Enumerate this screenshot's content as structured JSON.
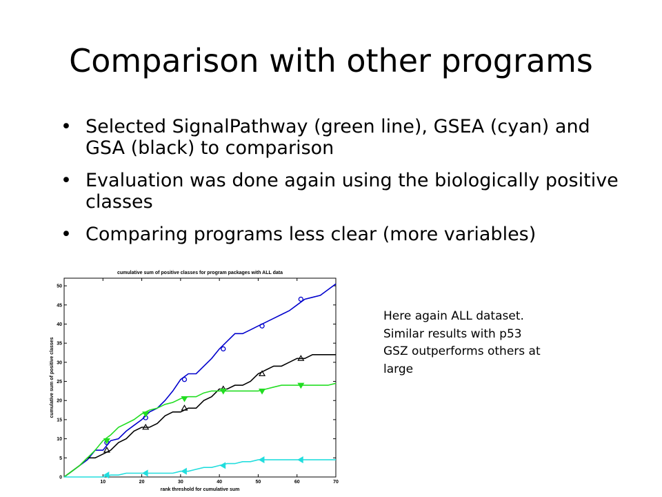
{
  "slide": {
    "title": "Comparison with other programs",
    "bullets": [
      "Selected SignalPathway (green line), GSEA (cyan) and GSA (black) to comparison",
      "Evaluation was done again using the biologically positive classes",
      "Comparing programs less clear (more variables)"
    ],
    "bullet_glyph": "•",
    "note_lines": [
      "Here again ALL dataset.",
      "Similar results with p53",
      "GSZ outperforms others at",
      "large"
    ]
  },
  "chart_data": {
    "type": "line",
    "title": "cumulative sum of positive classes for program packages with ALL data",
    "xlabel": "rank threshold for cumulative sum",
    "ylabel": "cumulative sum of positive classes",
    "xlim": [
      0,
      70
    ],
    "ylim": [
      0,
      52
    ],
    "xticks": [
      10,
      20,
      30,
      40,
      50,
      60,
      70
    ],
    "yticks": [
      0,
      5,
      10,
      15,
      20,
      25,
      30,
      35,
      40,
      45,
      50
    ],
    "grid": false,
    "series": [
      {
        "color": "#0000cc",
        "marker": "circle",
        "x": [
          0,
          2,
          4,
          6,
          8,
          10,
          12,
          14,
          16,
          18,
          20,
          22,
          24,
          26,
          28,
          30,
          32,
          34,
          36,
          38,
          40,
          42,
          44,
          46,
          48,
          50,
          52,
          54,
          56,
          58,
          60,
          62,
          64,
          66,
          68,
          70
        ],
        "y": [
          0,
          1.5,
          3,
          4.5,
          7,
          7,
          9.5,
          10,
          12,
          13.5,
          15,
          17,
          18,
          20,
          22.5,
          25.5,
          27,
          27,
          29,
          31,
          33.5,
          35.5,
          37.5,
          37.5,
          38.5,
          39.5,
          40.5,
          41.5,
          42.5,
          43.5,
          45,
          46.5,
          47,
          47.5,
          49,
          50.5
        ],
        "marker_x": [
          11,
          21,
          31,
          41,
          51,
          61
        ],
        "marker_y": [
          9,
          15.5,
          25.5,
          33.5,
          39.5,
          46.5
        ]
      },
      {
        "color": "#000000",
        "marker": "triangle-up",
        "x": [
          0,
          2,
          4,
          6,
          8,
          10,
          12,
          14,
          16,
          18,
          20,
          22,
          24,
          26,
          28,
          30,
          32,
          34,
          36,
          38,
          40,
          42,
          44,
          46,
          48,
          50,
          52,
          54,
          56,
          58,
          60,
          62,
          64,
          66,
          68,
          70
        ],
        "y": [
          0,
          1.5,
          3,
          5,
          5,
          6,
          7,
          9,
          10,
          12,
          13,
          13,
          14,
          16,
          17,
          17,
          18,
          18,
          20,
          21,
          23,
          23,
          24,
          24,
          25,
          27,
          28,
          29,
          29,
          30,
          31,
          31,
          32,
          32,
          32,
          32
        ],
        "marker_x": [
          11,
          21,
          31,
          41,
          51,
          61
        ],
        "marker_y": [
          7,
          13,
          18,
          23,
          27,
          31
        ]
      },
      {
        "color": "#22dd22",
        "marker": "triangle-down",
        "x": [
          0,
          2,
          4,
          6,
          8,
          10,
          12,
          14,
          16,
          18,
          20,
          22,
          24,
          26,
          28,
          30,
          32,
          34,
          36,
          38,
          40,
          42,
          44,
          46,
          48,
          50,
          52,
          54,
          56,
          58,
          60,
          62,
          64,
          66,
          68,
          70
        ],
        "y": [
          0,
          1.5,
          3,
          5,
          7,
          9.5,
          11,
          13,
          14,
          15,
          16.5,
          17.5,
          18,
          19,
          19.5,
          20.5,
          21,
          21,
          22,
          22.5,
          22.5,
          22.5,
          22.5,
          22.5,
          22.5,
          22.5,
          23,
          23.5,
          24,
          24,
          24,
          24,
          24,
          24,
          24,
          24.5
        ],
        "marker_x": [
          11,
          21,
          31,
          41,
          51,
          61
        ],
        "marker_y": [
          9.5,
          16.5,
          20.5,
          22.5,
          22.5,
          24
        ]
      },
      {
        "color": "#22dddd",
        "marker": "triangle-left",
        "x": [
          0,
          10,
          12,
          14,
          16,
          18,
          20,
          22,
          24,
          26,
          28,
          30,
          32,
          34,
          36,
          38,
          40,
          42,
          44,
          46,
          48,
          50,
          52,
          54,
          56,
          58,
          60,
          62,
          64,
          66,
          68,
          70
        ],
        "y": [
          0,
          0,
          0.5,
          0.5,
          1,
          1,
          1,
          1,
          1,
          1,
          1,
          1.5,
          1.5,
          2,
          2.5,
          2.5,
          3,
          3.5,
          3.5,
          4,
          4,
          4.5,
          4.5,
          4.5,
          4.5,
          4.5,
          4.5,
          4.5,
          4.5,
          4.5,
          4.5,
          4.5
        ],
        "marker_x": [
          11,
          21,
          31,
          41,
          51,
          61
        ],
        "marker_y": [
          0.5,
          1,
          1.5,
          3,
          4.5,
          4.5
        ]
      }
    ]
  }
}
